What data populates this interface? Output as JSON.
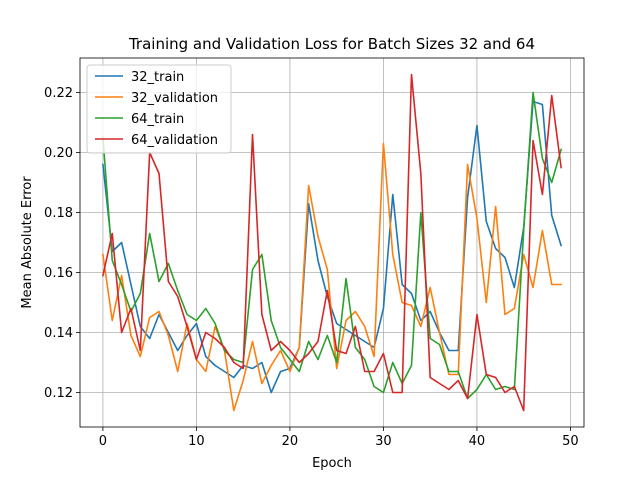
{
  "chart_data": {
    "type": "line",
    "title": "Training and Validation Loss for Batch Sizes 32 and 64",
    "xlabel": "Epoch",
    "ylabel": "Mean Absolute Error",
    "xlim": [
      -2.45,
      51.45
    ],
    "ylim": [
      0.1085,
      0.2315
    ],
    "xticks": [
      0,
      10,
      20,
      30,
      40,
      50
    ],
    "yticks": [
      0.12,
      0.14,
      0.16,
      0.18,
      0.2,
      0.22
    ],
    "ytick_labels": [
      "0.12",
      "0.14",
      "0.16",
      "0.18",
      "0.20",
      "0.22"
    ],
    "grid": true,
    "legend_position": "upper-left",
    "x": [
      0,
      1,
      2,
      3,
      4,
      5,
      6,
      7,
      8,
      9,
      10,
      11,
      12,
      13,
      14,
      15,
      16,
      17,
      18,
      19,
      20,
      21,
      22,
      23,
      24,
      25,
      26,
      27,
      28,
      29,
      30,
      31,
      32,
      33,
      34,
      35,
      36,
      37,
      38,
      39,
      40,
      41,
      42,
      43,
      44,
      45,
      46,
      47,
      48,
      49
    ],
    "series": [
      {
        "name": "32_train",
        "color": "#1f77b4",
        "values": [
          0.196,
          0.167,
          0.17,
          0.156,
          0.142,
          0.138,
          0.146,
          0.14,
          0.134,
          0.139,
          0.143,
          0.132,
          0.129,
          0.127,
          0.125,
          0.129,
          0.128,
          0.13,
          0.12,
          0.127,
          0.128,
          0.135,
          0.183,
          0.164,
          0.152,
          0.143,
          0.141,
          0.139,
          0.137,
          0.135,
          0.148,
          0.186,
          0.156,
          0.153,
          0.144,
          0.147,
          0.14,
          0.134,
          0.134,
          0.185,
          0.209,
          0.177,
          0.168,
          0.165,
          0.155,
          0.175,
          0.217,
          0.216,
          0.179,
          0.169
        ]
      },
      {
        "name": "32_validation",
        "color": "#ff7f0e",
        "values": [
          0.166,
          0.144,
          0.159,
          0.139,
          0.132,
          0.145,
          0.147,
          0.139,
          0.127,
          0.143,
          0.131,
          0.127,
          0.142,
          0.134,
          0.114,
          0.124,
          0.137,
          0.123,
          0.129,
          0.134,
          0.127,
          0.135,
          0.189,
          0.172,
          0.161,
          0.128,
          0.144,
          0.147,
          0.142,
          0.132,
          0.203,
          0.166,
          0.15,
          0.149,
          0.142,
          0.155,
          0.14,
          0.126,
          0.126,
          0.196,
          0.178,
          0.15,
          0.182,
          0.146,
          0.148,
          0.166,
          0.155,
          0.174,
          0.156,
          0.156
        ]
      },
      {
        "name": "64_train",
        "color": "#2ca02c",
        "values": [
          0.205,
          0.164,
          0.156,
          0.147,
          0.153,
          0.173,
          0.157,
          0.163,
          0.154,
          0.146,
          0.144,
          0.148,
          0.143,
          0.134,
          0.131,
          0.13,
          0.161,
          0.166,
          0.144,
          0.135,
          0.131,
          0.127,
          0.137,
          0.131,
          0.139,
          0.13,
          0.158,
          0.135,
          0.131,
          0.122,
          0.12,
          0.13,
          0.123,
          0.129,
          0.18,
          0.138,
          0.136,
          0.127,
          0.127,
          0.118,
          0.121,
          0.126,
          0.121,
          0.122,
          0.121,
          0.174,
          0.22,
          0.198,
          0.19,
          0.201
        ]
      },
      {
        "name": "64_validation",
        "color": "#d62728",
        "values": [
          0.159,
          0.173,
          0.14,
          0.148,
          0.134,
          0.2,
          0.193,
          0.157,
          0.152,
          0.142,
          0.131,
          0.14,
          0.138,
          0.135,
          0.13,
          0.128,
          0.206,
          0.146,
          0.134,
          0.137,
          0.134,
          0.13,
          0.133,
          0.137,
          0.154,
          0.134,
          0.133,
          0.142,
          0.127,
          0.127,
          0.133,
          0.12,
          0.12,
          0.226,
          0.193,
          0.125,
          0.123,
          0.121,
          0.124,
          0.118,
          0.146,
          0.126,
          0.125,
          0.12,
          0.122,
          0.114,
          0.204,
          0.186,
          0.219,
          0.195
        ]
      }
    ]
  }
}
